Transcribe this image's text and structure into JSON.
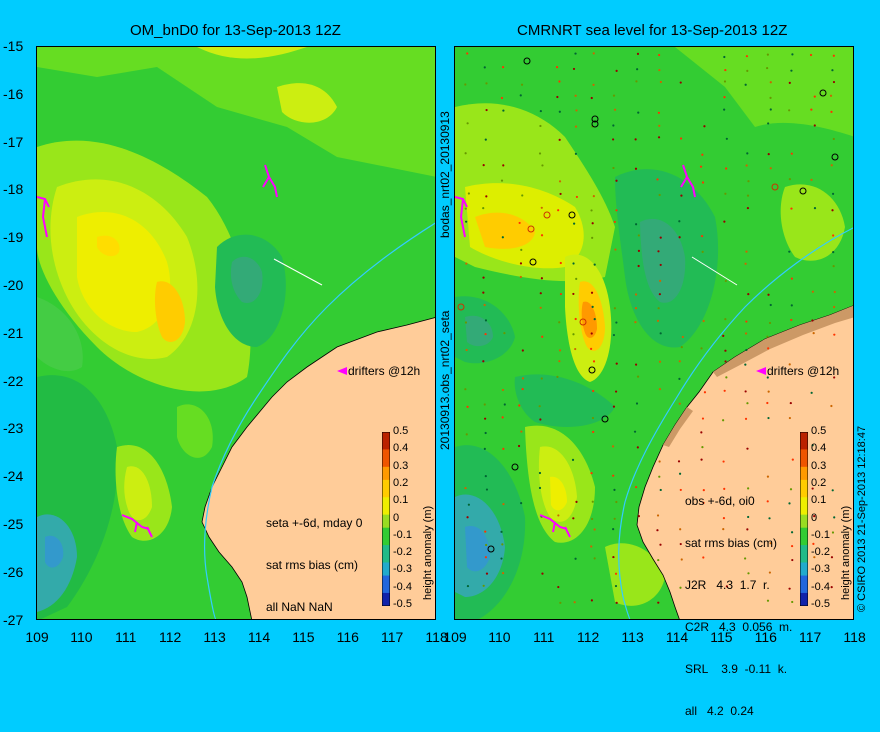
{
  "left": {
    "title": "OM_bnD0 for 13-Sep-2013 12Z",
    "stats": [
      "seta +-6d, mday 0",
      "sat rms bias (cm)",
      "all NaN NaN"
    ],
    "drifters": "drifters @12h"
  },
  "right": {
    "title": "CMRNRT sea level  for 13-Sep-2013 12Z",
    "stats": [
      "obs +-6d, oi0",
      "sat rms bias (cm)",
      "J2R   4.3  1.7  r.",
      "C2R   4.3  0.056  m.",
      "SRL    3.9  -0.11  k.",
      "all   4.2  0.24"
    ],
    "drifters": "drifters @12h"
  },
  "side_labels": {
    "top": "bodas_nrt02_20130913",
    "bottom": "20130913.obs_nrt02_seta",
    "right": "© CSIRO 2013   21-Sep-2013 12:18:47"
  },
  "colorbar": {
    "label": "height anomaly (m)",
    "ticks": [
      "0.5",
      "0.4",
      "0.3",
      "0.2",
      "0.1",
      "0",
      "-0.1",
      "-0.2",
      "-0.3",
      "-0.4",
      "-0.5"
    ]
  },
  "axes": {
    "lat_ticks": [
      "-15",
      "-16",
      "-17",
      "-18",
      "-19",
      "-20",
      "-21",
      "-22",
      "-23",
      "-24",
      "-25",
      "-26",
      "-27"
    ],
    "lon_ticks": [
      "109",
      "110",
      "111",
      "112",
      "113",
      "114",
      "115",
      "116",
      "117",
      "118"
    ]
  },
  "colors": {
    "land": "#ffcc99",
    "background": "#00ccff",
    "drifter": "#ff00ff",
    "isobath": "#33ccff"
  }
}
